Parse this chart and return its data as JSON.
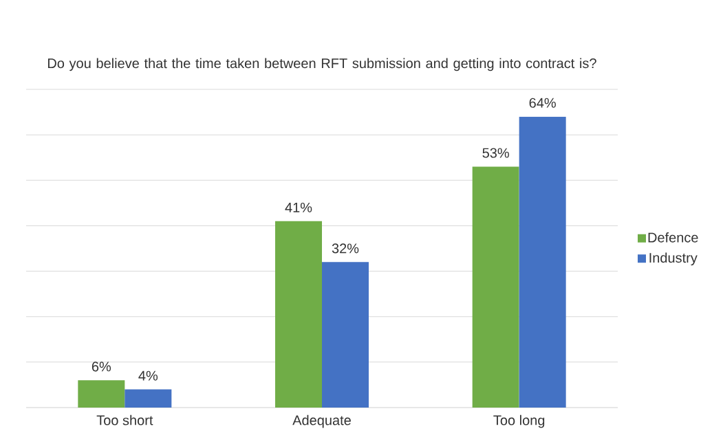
{
  "chart_data": {
    "type": "bar",
    "title": "Do you believe that the time taken between RFT submission and getting into contract is?",
    "categories": [
      "Too short",
      "Adequate",
      "Too long"
    ],
    "series": [
      {
        "name": "Defence",
        "color": "#70ad47",
        "values": [
          6,
          41,
          53
        ],
        "value_labels": [
          "6%",
          "41%",
          "53%"
        ]
      },
      {
        "name": "Industry",
        "color": "#4472c4",
        "values": [
          4,
          32,
          64
        ],
        "value_labels": [
          "4%",
          "32%",
          "64%"
        ]
      }
    ],
    "ylim": [
      0,
      70
    ],
    "yticks": [
      {
        "value": 0,
        "label": null
      },
      {
        "value": 10,
        "label": null
      },
      {
        "value": 20,
        "label": null
      },
      {
        "value": 30,
        "label": null
      },
      {
        "value": 40,
        "label": null
      },
      {
        "value": 50,
        "label": null
      },
      {
        "value": 60,
        "label": null
      },
      {
        "value": 70,
        "label": null
      }
    ],
    "tick_labels": "x",
    "grid": "y",
    "legend": "right"
  }
}
